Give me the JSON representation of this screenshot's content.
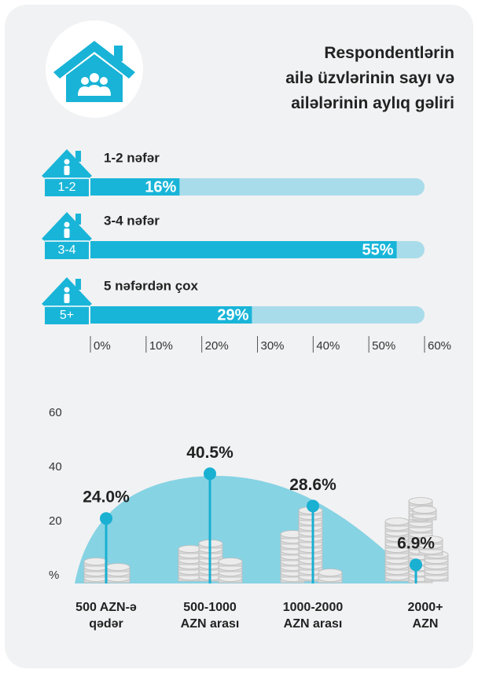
{
  "title": "Respondentlərin\nailə üzvlərinin sayı və\nailələrinin aylıq gəliri",
  "chart_data": [
    {
      "type": "hbar",
      "categories": [
        "1-2 nəfər",
        "3-4 nəfər",
        "5 nəfərdən çox"
      ],
      "icon_labels": [
        "1-2",
        "3-4",
        "5+"
      ],
      "values": [
        16,
        55,
        29
      ],
      "value_labels": [
        "16%",
        "55%",
        "29%"
      ],
      "color": "#19b5d8",
      "track_color": "#a9dcea",
      "xlim": [
        0,
        60
      ],
      "xticks": [
        {
          "value": 0,
          "label": "0%"
        },
        {
          "value": 10,
          "label": "10%"
        },
        {
          "value": 20,
          "label": "20%"
        },
        {
          "value": 30,
          "label": "30%"
        },
        {
          "value": 40,
          "label": "40%"
        },
        {
          "value": 50,
          "label": "50%"
        },
        {
          "value": 60,
          "label": "60%"
        }
      ]
    },
    {
      "type": "lollipop",
      "categories": [
        "500 AZN-ə\nqədər",
        "500-1000\nAZN arası",
        "1000-2000\nAZN arası",
        "2000+\nAZN"
      ],
      "values": [
        24.0,
        40.5,
        28.6,
        6.9
      ],
      "value_labels": [
        "24.0%",
        "40.5%",
        "28.6%",
        "6.9%"
      ],
      "color": "#19b0d2",
      "ylim": [
        0,
        60
      ],
      "yticks": [
        {
          "value": 0,
          "label": "%"
        },
        20,
        40,
        60
      ]
    }
  ]
}
